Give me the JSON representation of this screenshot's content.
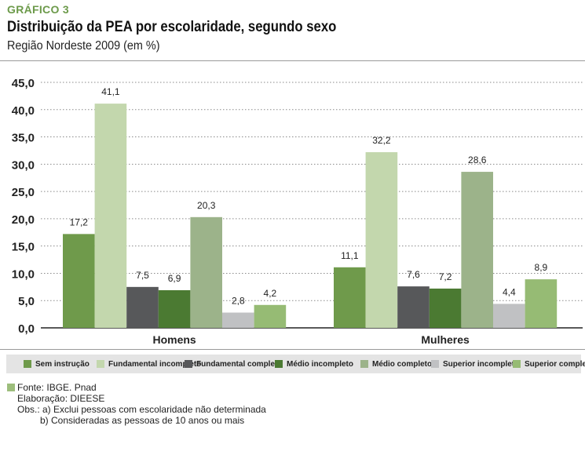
{
  "header": {
    "label": "GRÁFICO 3",
    "title": "Distribuição da PEA por escolaridade, segundo sexo",
    "subtitle": "Região Nordeste 2009 (em %)"
  },
  "chart_data": {
    "type": "bar",
    "title": "Distribuição da PEA por escolaridade, segundo sexo",
    "subtitle": "Região Nordeste 2009 (em %)",
    "categories": [
      "Homens",
      "Mulheres"
    ],
    "ylim": [
      0,
      45
    ],
    "yticks": [
      "0,0",
      "5,0",
      "10,0",
      "15,0",
      "20,0",
      "25,0",
      "30,0",
      "35,0",
      "40,0",
      "45,0"
    ],
    "grid": true,
    "legend_position": "bottom",
    "series": [
      {
        "name": "Sem instrução",
        "color": "#6f9a4b",
        "values": [
          17.2,
          11.1
        ],
        "labels": [
          "17,2",
          "11,1"
        ]
      },
      {
        "name": "Fundamental incompleto",
        "color": "#c3d7ad",
        "values": [
          41.1,
          32.2
        ],
        "labels": [
          "41,1",
          "32,2"
        ]
      },
      {
        "name": "Fundamental completo",
        "color": "#57585a",
        "values": [
          7.5,
          7.6
        ],
        "labels": [
          "7,5",
          "7,6"
        ]
      },
      {
        "name": "Médio incompleto",
        "color": "#4b7a32",
        "values": [
          6.9,
          7.2
        ],
        "labels": [
          "6,9",
          "7,2"
        ]
      },
      {
        "name": "Médio completo",
        "color": "#9cb38a",
        "values": [
          20.3,
          28.6
        ],
        "labels": [
          "20,3",
          "28,6"
        ]
      },
      {
        "name": "Superior incompleto",
        "color": "#c0c1c3",
        "values": [
          2.8,
          4.4
        ],
        "labels": [
          "2,8",
          "4,4"
        ]
      },
      {
        "name": "Superior completo",
        "color": "#96bb74",
        "values": [
          4.2,
          8.9
        ],
        "labels": [
          "4,2",
          "8,9"
        ]
      }
    ]
  },
  "notes": {
    "fonte": "Fonte: IBGE. Pnad",
    "elaboracao": "Elaboração: DIEESE",
    "obs_a": "Obs.: a) Exclui pessoas com escolaridade não determinada",
    "obs_b": "b) Consideradas as pessoas de 10 anos ou mais"
  }
}
